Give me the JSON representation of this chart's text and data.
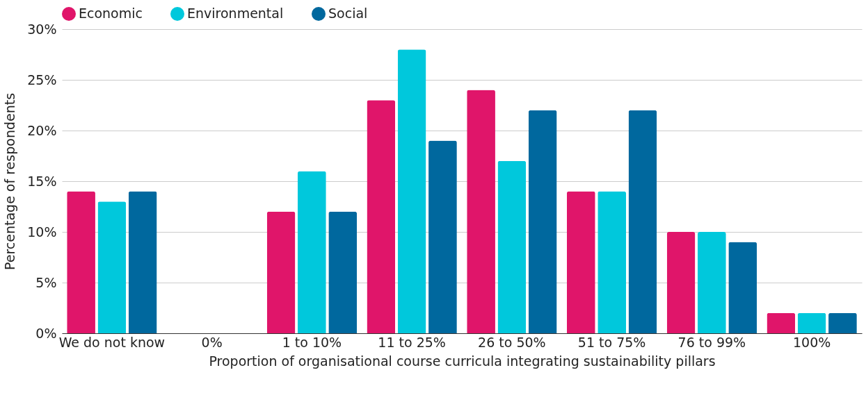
{
  "chart_data": {
    "type": "bar",
    "xlabel": "Proportion of organisational course curricula integrating sustainability pillars",
    "ylabel": "Percentage of respondents",
    "categories": [
      "We do not know",
      "0%",
      "1 to 10%",
      "11 to 25%",
      "26 to 50%",
      "51 to 75%",
      "76 to 99%",
      "100%"
    ],
    "series": [
      {
        "name": "Economic",
        "color": "#e0156a",
        "values": [
          14,
          0,
          12,
          23,
          24,
          14,
          10,
          2
        ]
      },
      {
        "name": "Environmental",
        "color": "#00c8dc",
        "values": [
          13,
          0,
          16,
          28,
          17,
          14,
          10,
          2
        ]
      },
      {
        "name": "Social",
        "color": "#00689e",
        "values": [
          14,
          0,
          12,
          19,
          22,
          22,
          9,
          2
        ]
      }
    ],
    "ylim": [
      0,
      30
    ],
    "yticks": [
      {
        "value": 0,
        "label": "0%"
      },
      {
        "value": 5,
        "label": "5%"
      },
      {
        "value": 10,
        "label": "10%"
      },
      {
        "value": 15,
        "label": "15%"
      },
      {
        "value": 20,
        "label": "20%"
      },
      {
        "value": 25,
        "label": "25%"
      },
      {
        "value": 30,
        "label": "30%"
      }
    ],
    "grid": "y",
    "legend": "top"
  }
}
